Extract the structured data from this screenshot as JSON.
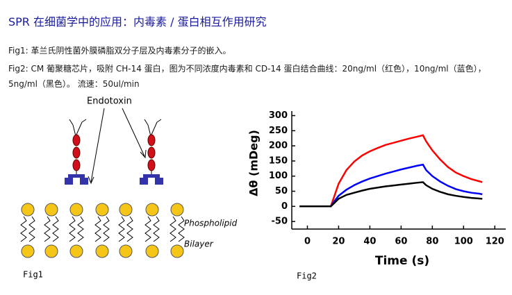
{
  "header": {
    "title": "SPR 在细菌学中的应用：内毒素 / 蛋白相互作用研究"
  },
  "captions": [
    "Fig1: 革兰氏阴性菌外膜磷脂双分子层及内毒素分子的嵌入。",
    "Fig2: CM 葡聚糖芯片，吸附 CH-14 蛋白，图为不同浓度内毒素和 CD-14 蛋白结合曲线：20ng/ml（红色），10ng/ml（蓝色），5ng/ml（黑色）。 流速：50ul/min"
  ],
  "fig1": {
    "labels": {
      "endotoxin": "Endotoxin",
      "phospholipid": "Phospholipid",
      "bilayer": "Bilayer"
    },
    "caption": "Fig1"
  },
  "fig2_caption": "Fig2",
  "chart_data": {
    "type": "line",
    "x_label": "Time (s)",
    "y_label": "Δθ (mDeg)",
    "x": [
      -5,
      0,
      5,
      10,
      15,
      17,
      20,
      25,
      30,
      35,
      40,
      45,
      50,
      55,
      60,
      65,
      70,
      74,
      76,
      80,
      85,
      90,
      95,
      100,
      105,
      110,
      112
    ],
    "series": [
      {
        "color": "#ff0000",
        "values": [
          0,
          0,
          0,
          0,
          0,
          30,
          75,
          120,
          148,
          168,
          182,
          193,
          203,
          210,
          217,
          224,
          230,
          235,
          215,
          185,
          155,
          130,
          112,
          100,
          90,
          83,
          80
        ]
      },
      {
        "color": "#0000ff",
        "values": [
          0,
          0,
          0,
          0,
          0,
          15,
          35,
          55,
          70,
          82,
          92,
          100,
          108,
          115,
          122,
          128,
          134,
          138,
          120,
          100,
          82,
          68,
          57,
          50,
          45,
          42,
          40
        ]
      },
      {
        "color": "#000000",
        "values": [
          0,
          0,
          0,
          0,
          0,
          10,
          25,
          38,
          45,
          52,
          58,
          62,
          66,
          69,
          72,
          75,
          78,
          80,
          70,
          58,
          48,
          40,
          35,
          31,
          28,
          26,
          25
        ]
      }
    ],
    "xlim": [
      -10,
      127
    ],
    "xticks": [
      0,
      20,
      40,
      60,
      80,
      100,
      120
    ],
    "ylim": [
      -75,
      315
    ],
    "yticks": [
      -50,
      0,
      50,
      100,
      150,
      200,
      250,
      300
    ]
  }
}
